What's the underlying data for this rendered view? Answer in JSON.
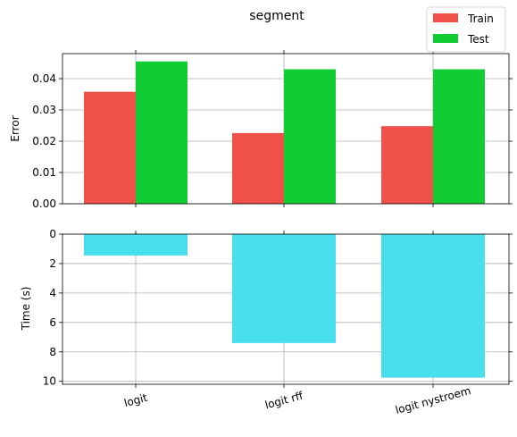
{
  "chart_data": [
    {
      "type": "bar",
      "title": "segment",
      "xlabel": "",
      "ylabel": "Error",
      "categories": [
        "logit",
        "logit rff",
        "logit nystroem"
      ],
      "series": [
        {
          "name": "Train",
          "color": "#ef5047",
          "values": [
            0.0358,
            0.0226,
            0.0248
          ]
        },
        {
          "name": "Test",
          "color": "#12cc33",
          "values": [
            0.0455,
            0.043,
            0.043
          ]
        }
      ],
      "ylim": [
        0,
        0.048
      ],
      "yticks": [
        "0.00",
        "0.01",
        "0.02",
        "0.03",
        "0.04"
      ],
      "legend": "top-right",
      "grid": true
    },
    {
      "type": "bar",
      "xlabel": "",
      "ylabel": "Time (s)",
      "categories": [
        "logit",
        "logit rff",
        "logit nystroem"
      ],
      "series": [
        {
          "color": "#47dfec",
          "values": [
            1.45,
            7.4,
            9.75
          ]
        }
      ],
      "ylim": [
        0,
        10.2
      ],
      "y_inverted": true,
      "yticks": [
        "0",
        "2",
        "4",
        "6",
        "8",
        "10"
      ],
      "grid": true
    }
  ]
}
